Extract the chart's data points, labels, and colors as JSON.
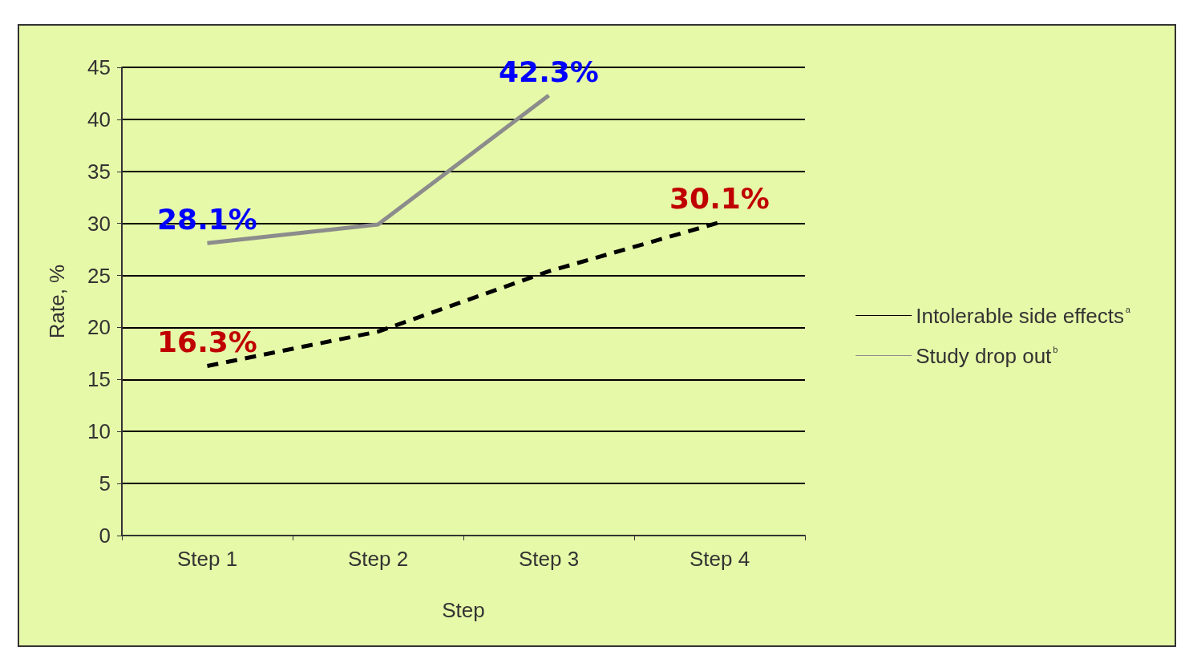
{
  "chart_data": {
    "type": "line",
    "xlabel": "Step",
    "ylabel": "Rate, %",
    "categories": [
      "Step 1",
      "Step 2",
      "Step 3",
      "Step 4"
    ],
    "series": [
      {
        "name": "Intolerable side effects$^{a}$",
        "color": "#000000",
        "line_style": "dashed",
        "values": [
          16.3,
          19.6,
          25.4,
          30.1
        ],
        "value_labels": [
          "16.3%",
          null,
          null,
          "30.1%"
        ]
      },
      {
        "name": "Study drop out$^{b}$",
        "color": "#8c8c8c",
        "line_style": "solid",
        "values": [
          28.1,
          29.9,
          42.3,
          null
        ],
        "value_labels": [
          "28.1%",
          null,
          "42.3%",
          null
        ]
      }
    ],
    "ylim": [
      0,
      45
    ],
    "yticks": [
      0,
      5,
      10,
      15,
      20,
      25,
      30,
      35,
      40,
      45
    ],
    "grid": "y",
    "legend": "right",
    "marker": "none"
  }
}
